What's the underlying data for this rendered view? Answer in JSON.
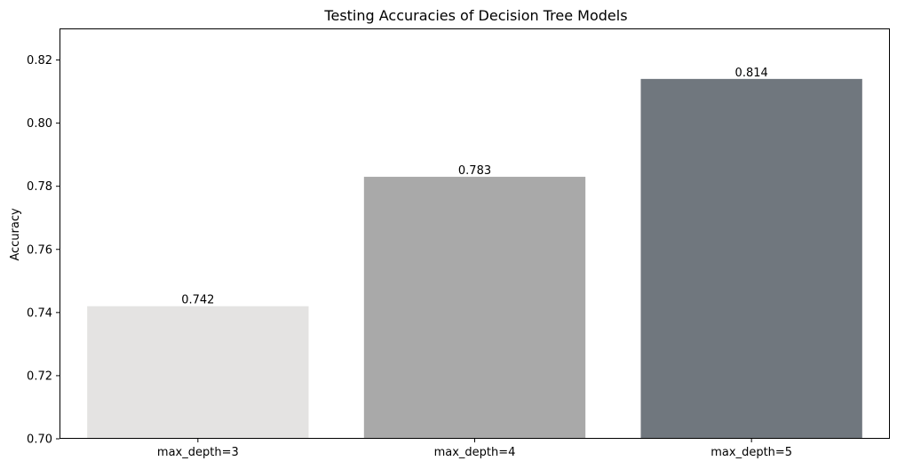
{
  "chart_data": {
    "type": "bar",
    "title": "Testing Accuracies of Decision Tree Models",
    "xlabel": "",
    "ylabel": "Accuracy",
    "categories": [
      "max_depth=3",
      "max_depth=4",
      "max_depth=5"
    ],
    "values": [
      0.742,
      0.783,
      0.814
    ],
    "value_labels": [
      "0.742",
      "0.783",
      "0.814"
    ],
    "colors": [
      "#e4e3e2",
      "#a9a9a9",
      "#70777e"
    ],
    "ylim": [
      0.7,
      0.83
    ],
    "yticks": [
      0.7,
      0.72,
      0.74,
      0.76,
      0.78,
      0.8,
      0.82
    ],
    "ytick_labels": [
      "0.70",
      "0.72",
      "0.74",
      "0.76",
      "0.78",
      "0.80",
      "0.82"
    ],
    "grid": false,
    "legend": "none"
  }
}
